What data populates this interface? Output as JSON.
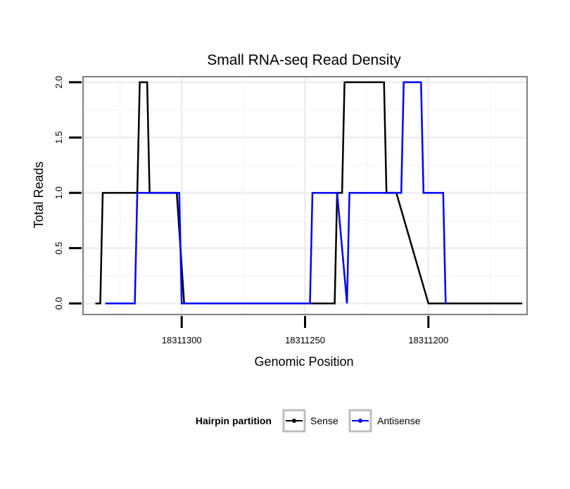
{
  "chart_data": {
    "type": "line",
    "title": "Small RNA-seq Read Density",
    "xlabel": "Genomic Position",
    "ylabel": "Total Reads",
    "x_reversed": true,
    "xlim": [
      18311340,
      18311160
    ],
    "ylim": [
      -0.1,
      2.05
    ],
    "xticks": [
      18311300,
      18311250,
      18311200
    ],
    "xtick_labels": [
      "18311300",
      "18311250",
      "18311200"
    ],
    "yticks": [
      0,
      0.5,
      1,
      1.5,
      2
    ],
    "ytick_labels": [
      "0.0",
      "0.5",
      "1.0",
      "1.5",
      "2.0"
    ],
    "grid": true,
    "legend_title": "Hairpin partition",
    "legend_position": "bottom",
    "colors": {
      "Sense": "#000000",
      "Antisense": "#0000ff"
    },
    "series": [
      {
        "name": "Sense",
        "x": [
          18311335,
          18311333,
          18311332,
          18311318,
          18311317,
          18311314,
          18311313,
          18311303,
          18311302,
          18311299,
          18311276,
          18311247,
          18311238,
          18311237,
          18311235,
          18311234,
          18311218,
          18311217,
          18311214,
          18311213,
          18311200,
          18311162
        ],
        "y": [
          0,
          0,
          1,
          1,
          2,
          2,
          1,
          1,
          1,
          0,
          0,
          0,
          0,
          1,
          1,
          2,
          2,
          1,
          1,
          1,
          0,
          0
        ]
      },
      {
        "name": "Antisense",
        "x": [
          18311331,
          18311319,
          18311318,
          18311301,
          18311300,
          18311276,
          18311248,
          18311247,
          18311238,
          18311237,
          18311233,
          18311232,
          18311212,
          18311211,
          18311210,
          18311203,
          18311202,
          18311194,
          18311193
        ],
        "y": [
          0,
          0,
          1,
          1,
          0,
          0,
          0,
          1,
          1,
          1,
          0,
          1,
          1,
          1,
          2,
          2,
          1,
          1,
          0
        ]
      }
    ]
  }
}
